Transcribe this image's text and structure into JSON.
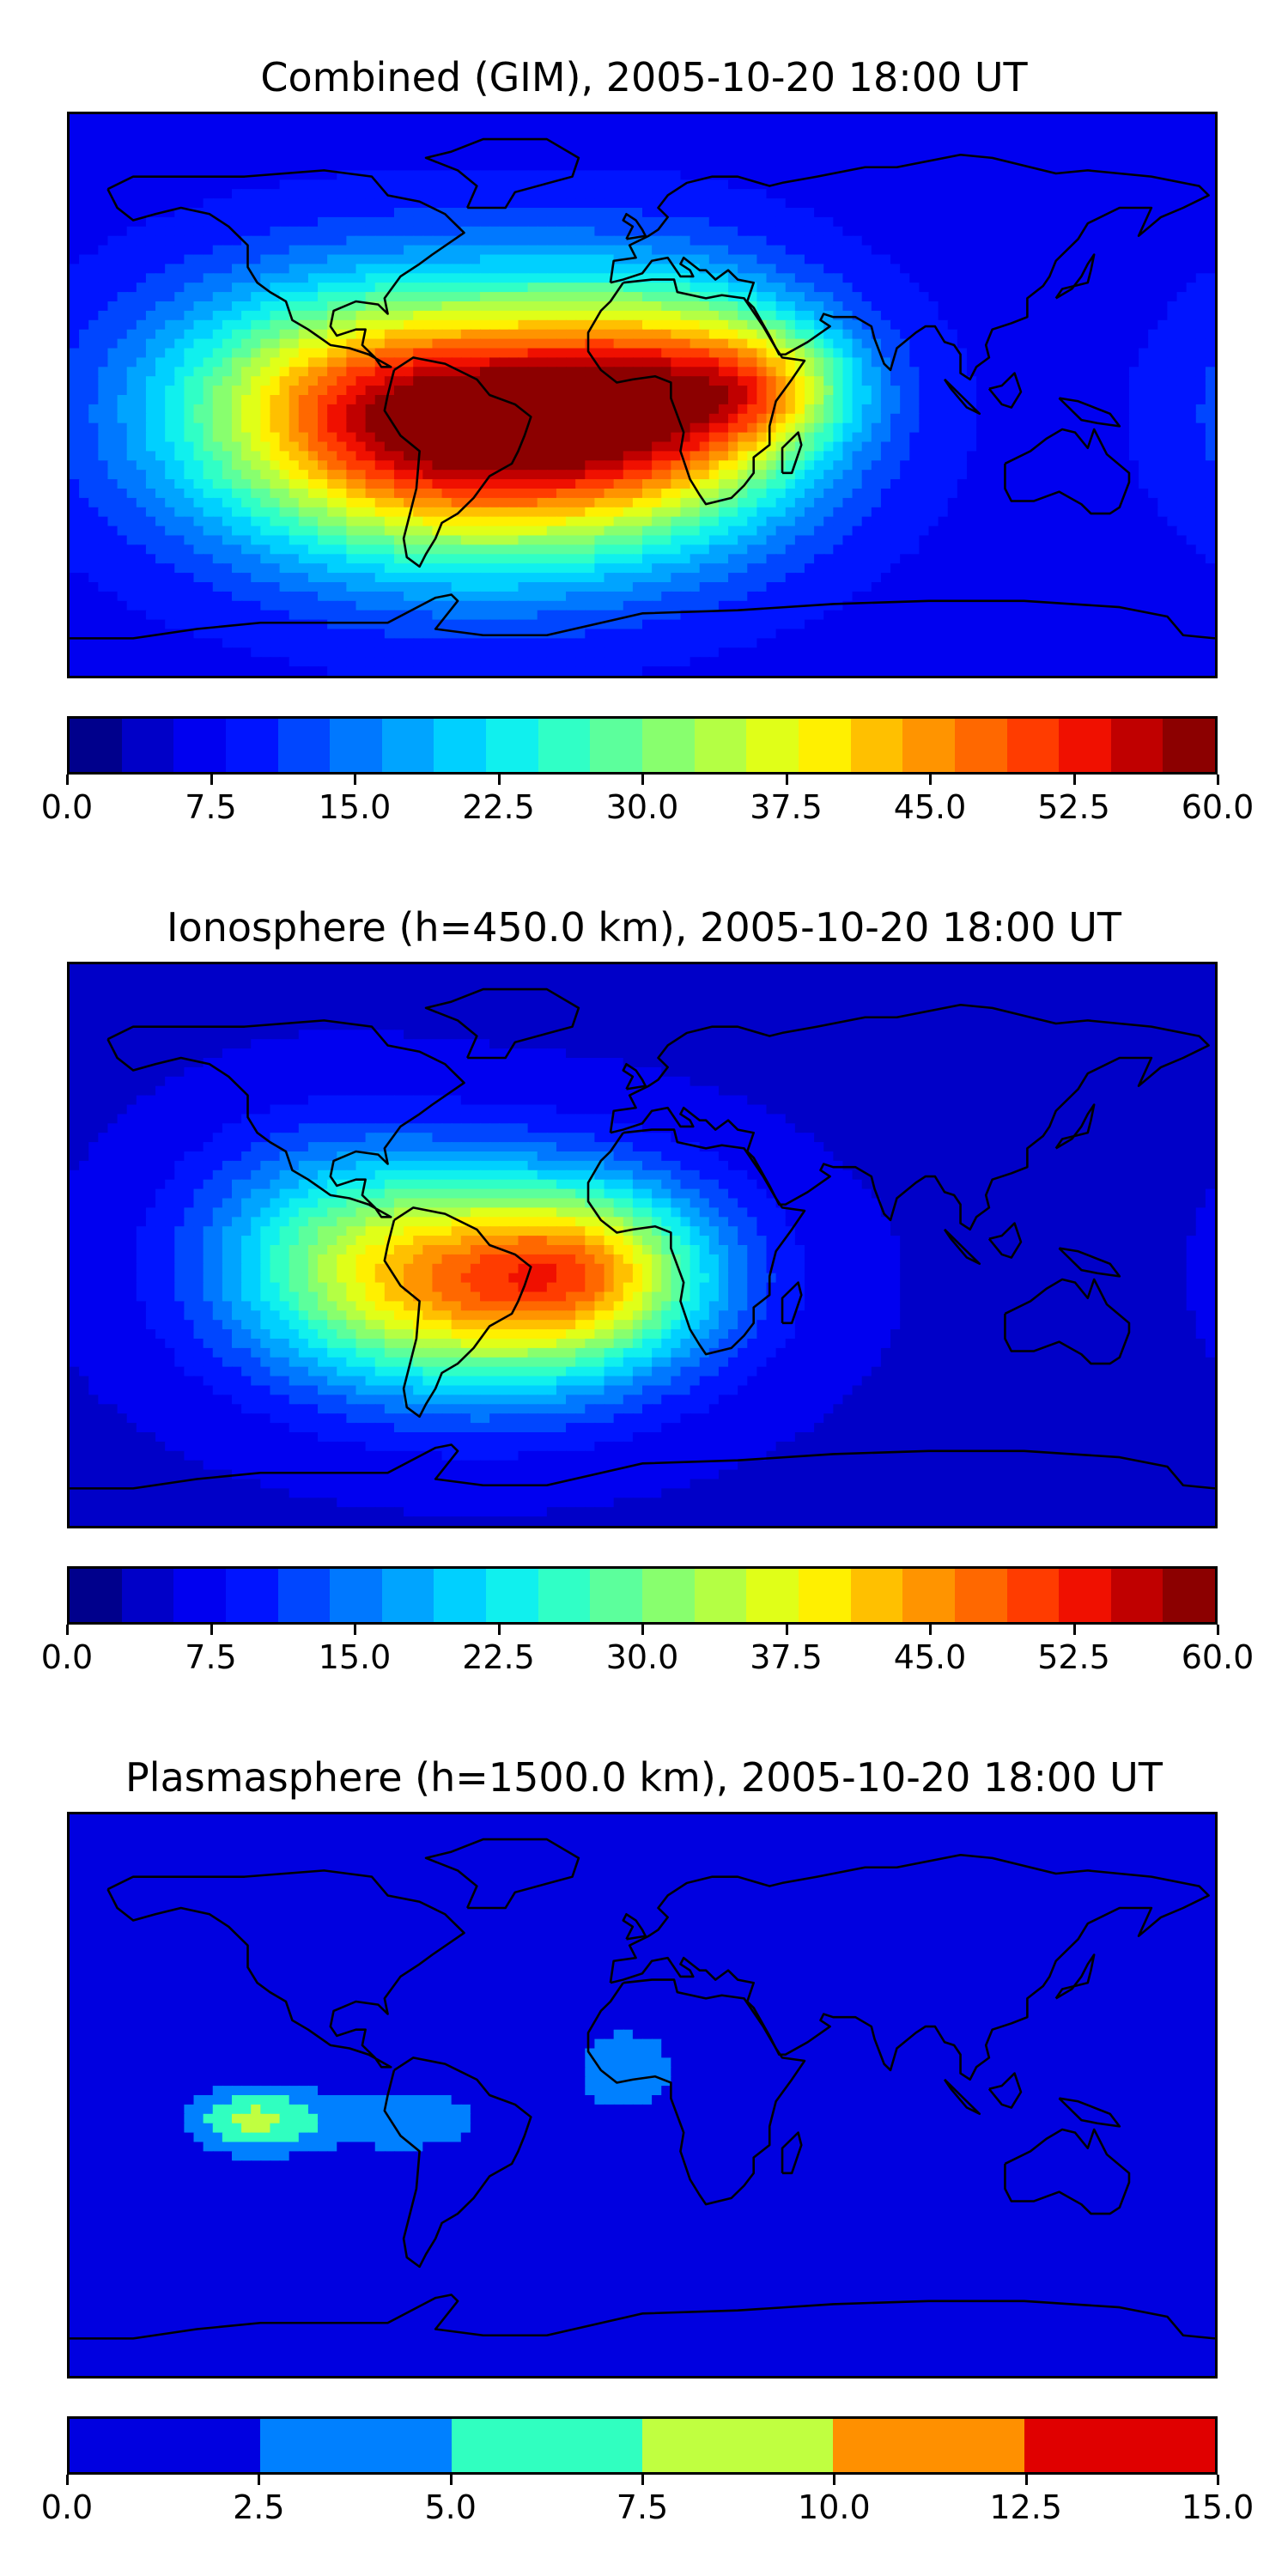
{
  "panels": [
    {
      "title": "Combined (GIM), 2005-10-20 18:00 UT",
      "colorbar": {
        "ticks": [
          "0.0",
          "7.5",
          "15.0",
          "22.5",
          "30.0",
          "37.5",
          "45.0",
          "52.5",
          "60.0"
        ],
        "colors": [
          "#00008c",
          "#0000c8",
          "#0000f0",
          "#0014ff",
          "#0046ff",
          "#0078ff",
          "#00a4ff",
          "#00d0ff",
          "#10f0ee",
          "#30ffc6",
          "#5cff9c",
          "#88ff6e",
          "#b4ff44",
          "#e0ff18",
          "#fff000",
          "#ffc000",
          "#ff9400",
          "#ff6800",
          "#ff3c00",
          "#f01000",
          "#c00000",
          "#8c0000"
        ]
      },
      "fields": [
        {
          "lon": -50,
          "lat": -10,
          "amp": 52,
          "sx": 55,
          "sy": 30
        },
        {
          "lon": 10,
          "lat": 0,
          "amp": 22,
          "sx": 30,
          "sy": 25
        },
        {
          "lon": 40,
          "lat": 3,
          "amp": 16,
          "sx": 20,
          "sy": 14
        },
        {
          "lon": -105,
          "lat": 0,
          "amp": 10,
          "sx": 40,
          "sy": 25
        }
      ],
      "background_value": 7
    },
    {
      "title": "Ionosphere  (h=450.0 km), 2005-10-20 18:00 UT",
      "colorbar": {
        "ticks": [
          "0.0",
          "7.5",
          "15.0",
          "22.5",
          "30.0",
          "37.5",
          "45.0",
          "52.5",
          "60.0"
        ],
        "colors": [
          "#00008c",
          "#0000c8",
          "#0000f0",
          "#0014ff",
          "#0046ff",
          "#0078ff",
          "#00a4ff",
          "#00d0ff",
          "#10f0ee",
          "#30ffc6",
          "#5cff9c",
          "#88ff6e",
          "#b4ff44",
          "#e0ff18",
          "#fff000",
          "#ffc000",
          "#ff9400",
          "#ff6800",
          "#ff3c00",
          "#f01000",
          "#c00000",
          "#8c0000"
        ]
      },
      "fields": [
        {
          "lon": -52,
          "lat": -12,
          "amp": 38,
          "sx": 45,
          "sy": 25
        },
        {
          "lon": -15,
          "lat": -8,
          "amp": 16,
          "sx": 25,
          "sy": 18
        },
        {
          "lon": -100,
          "lat": 5,
          "amp": 8,
          "sx": 30,
          "sy": 25
        }
      ],
      "background_value": 5
    },
    {
      "title": "Plasmasphere (h=1500.0 km), 2005-10-20 18:00 UT",
      "colorbar": {
        "ticks": [
          "0.0",
          "2.5",
          "5.0",
          "7.5",
          "10.0",
          "12.5",
          "15.0"
        ],
        "colors": [
          "#0000e0",
          "#0080ff",
          "#30ffc0",
          "#c0ff40",
          "#ff9000",
          "#e00000"
        ]
      },
      "fields": [
        {
          "lon": -122,
          "lat": -8,
          "amp": 8,
          "sx": 15,
          "sy": 8
        },
        {
          "lon": -75,
          "lat": -8,
          "amp": 4.5,
          "sx": 20,
          "sy": 8
        },
        {
          "lon": -5,
          "lat": 8,
          "amp": 5,
          "sx": 12,
          "sy": 10
        }
      ],
      "background_value": 0
    }
  ]
}
